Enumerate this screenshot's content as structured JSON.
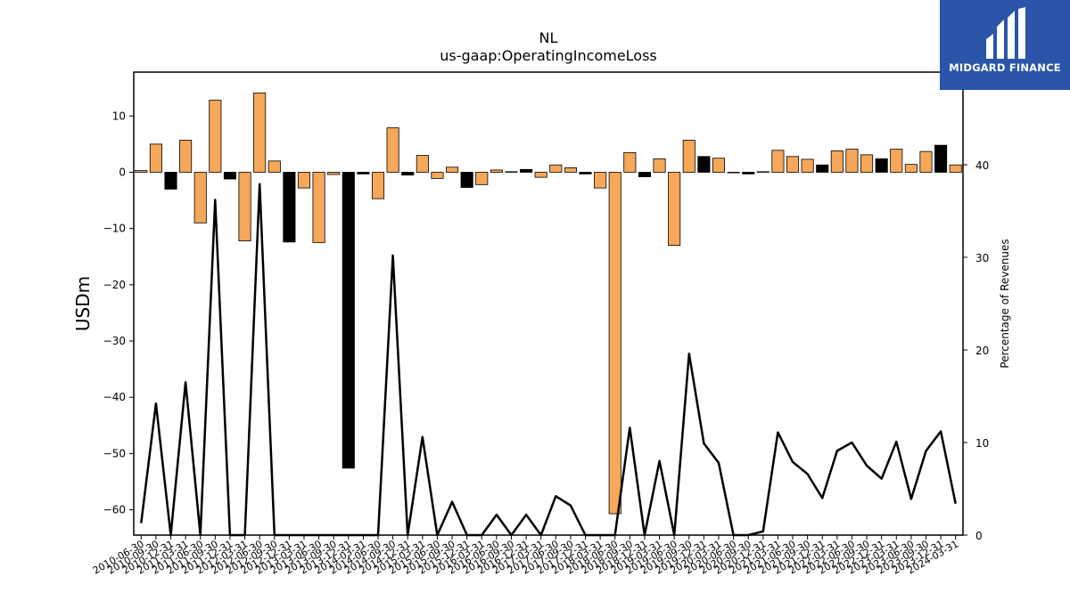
{
  "chart_data": {
    "type": "bar",
    "title": "NL",
    "subtitle": "us-gaap:OperatingIncomeLoss",
    "ylabel": "USDm",
    "y2label": "Percentage of Revenues",
    "ylim": [
      -64.5,
      17.8
    ],
    "y2lim": [
      0,
      50
    ],
    "yticks": [
      "10",
      "0",
      "−10",
      "−20",
      "−30",
      "−40",
      "−50",
      "−60"
    ],
    "y2ticks": [
      "0",
      "10",
      "20",
      "30",
      "40"
    ],
    "categories": [
      "2010-06-30",
      "2010-09-30",
      "2010-12-31",
      "2011-03-31",
      "2011-06-30",
      "2011-09-30",
      "2011-12-31",
      "2012-03-31",
      "2012-06-30",
      "2012-09-30",
      "2012-12-31",
      "2013-03-31",
      "2013-06-30",
      "2013-09-30",
      "2013-12-31",
      "2014-03-31",
      "2014-06-30",
      "2014-09-30",
      "2014-12-31",
      "2015-03-31",
      "2015-06-30",
      "2015-09-30",
      "2015-12-31",
      "2016-03-31",
      "2016-06-30",
      "2016-09-30",
      "2016-12-31",
      "2017-03-31",
      "2017-06-30",
      "2017-09-30",
      "2017-12-31",
      "2018-03-31",
      "2018-06-30",
      "2018-09-30",
      "2018-12-31",
      "2019-03-31",
      "2019-06-30",
      "2019-09-30",
      "2019-12-31",
      "2020-03-31",
      "2020-06-30",
      "2020-09-30",
      "2020-12-31",
      "2021-03-31",
      "2021-06-30",
      "2021-09-30",
      "2021-12-31",
      "2022-03-31",
      "2022-06-30",
      "2022-09-30",
      "2022-12-31",
      "2023-03-31",
      "2023-06-30",
      "2023-09-30",
      "2023-12-31",
      "2024-03-31"
    ],
    "xticklabels": [
      "2010-06-30",
      "2010-09-30",
      "2010-12-31",
      "2011-03-31",
      "2011-06-30",
      "2011-09-30",
      "2011-12-31",
      "2012-03-31",
      "2012-06-30",
      "2012-09-30",
      "2012-12-31",
      "2013-03-31",
      "2013-06-30",
      "2013-09-30",
      "2013-12-31",
      "2014-03-31",
      "2014-06-30",
      "2014-09-30",
      "2014-12-31",
      "2015-03-31",
      "2015-06-30",
      "2015-09-30",
      "2015-12-31",
      "2016-03-31",
      "2016-06-30",
      "2016-09-30",
      "2016-12-31",
      "2017-03-31",
      "2017-06-30",
      "2017-09-30",
      "2017-12-31",
      "2018-03-31",
      "2018-06-30",
      "2018-09-30",
      "2018-12-31",
      "2019-03-31",
      "2019-06-30",
      "2019-09-30",
      "2019-12-31",
      "2020-03-31",
      "2020-06-30",
      "2020-09-30",
      "2020-12-31",
      "2021-03-31",
      "2021-06-30",
      "2021-09-30",
      "2021-12-31",
      "2022-03-31",
      "2022-06-30",
      "2022-09-30",
      "2022-12-31",
      "2023-03-31",
      "2023-06-30",
      "2023-09-30",
      "2023-12-31",
      "2024-03-31"
    ],
    "series": [
      {
        "role": "bars",
        "values": [
          0.3,
          5.0,
          -3.0,
          5.7,
          -9.0,
          12.8,
          -1.2,
          -12.2,
          14.1,
          2.0,
          -12.4,
          -2.8,
          -12.5,
          -0.4,
          -52.6,
          -0.3,
          -4.7,
          7.9,
          -0.5,
          3.0,
          -1.1,
          0.9,
          -2.7,
          -2.2,
          0.4,
          0.1,
          0.5,
          -0.9,
          1.3,
          0.8,
          -0.3,
          -2.8,
          -60.7,
          3.5,
          -0.8,
          2.4,
          -13.0,
          5.7,
          2.8,
          2.5,
          -0.1,
          -0.3,
          0.1,
          3.9,
          2.8,
          2.3,
          1.3,
          3.8,
          4.1,
          3.1,
          2.4,
          4.1,
          1.4,
          3.7,
          4.8,
          1.3
        ],
        "colors": [
          "orange",
          "orange",
          "black",
          "orange",
          "orange",
          "orange",
          "black",
          "orange",
          "orange",
          "orange",
          "black",
          "orange",
          "orange",
          "orange",
          "black",
          "black",
          "orange",
          "orange",
          "black",
          "orange",
          "orange",
          "orange",
          "black",
          "orange",
          "orange",
          "black",
          "black",
          "orange",
          "orange",
          "orange",
          "black",
          "orange",
          "orange",
          "orange",
          "black",
          "orange",
          "orange",
          "orange",
          "black",
          "orange",
          "black",
          "black",
          "black",
          "orange",
          "orange",
          "orange",
          "black",
          "orange",
          "orange",
          "orange",
          "black",
          "orange",
          "orange",
          "orange",
          "black",
          "orange"
        ]
      },
      {
        "role": "line",
        "axis": "right",
        "values": [
          1.3,
          14.2,
          0,
          16.5,
          0,
          36.2,
          0,
          0,
          37.9,
          0,
          0,
          0,
          0,
          0,
          0,
          0,
          0,
          30.2,
          0,
          10.6,
          0,
          3.6,
          0,
          0,
          2.2,
          0,
          2.2,
          0,
          4.2,
          3.2,
          0,
          0,
          0,
          11.6,
          0,
          8.0,
          0,
          19.6,
          9.9,
          7.8,
          0,
          0,
          0.4,
          11.1,
          7.9,
          6.6,
          4.0,
          9.1,
          10.0,
          7.5,
          6.1,
          10.1,
          3.9,
          9.1,
          11.2,
          3.4
        ]
      }
    ],
    "colors": {
      "orange": "#f5a75a",
      "black": "#000000"
    },
    "grid": false
  },
  "logo": {
    "text": "MIDGARD FINANCE",
    "bg": "#2a55a8"
  }
}
